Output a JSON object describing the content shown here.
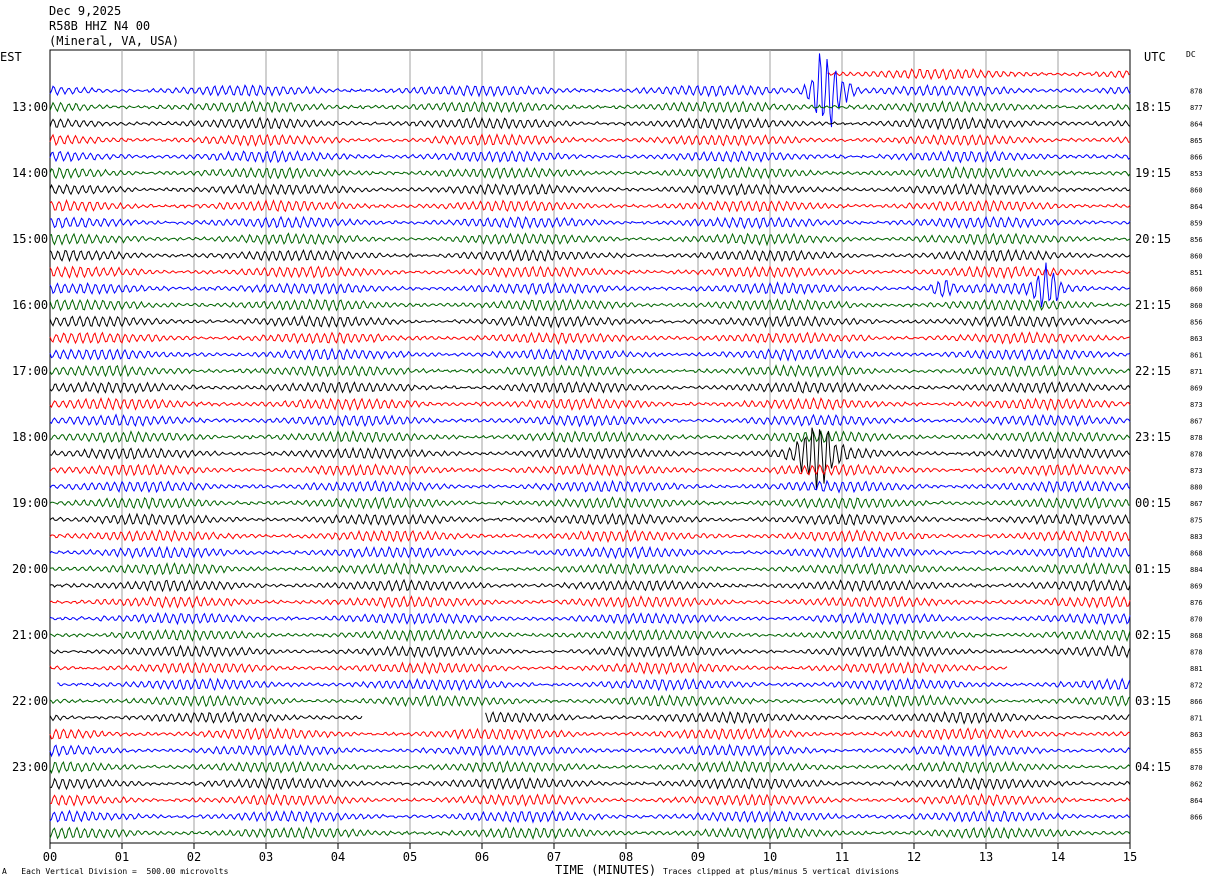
{
  "header": {
    "date": "Dec 9,2025",
    "station": "R58B HHZ N4 00",
    "location": "(Mineral, VA, USA)"
  },
  "labels": {
    "left_zone": "EST",
    "right_zone": "UTC",
    "dc": "DC",
    "x_title": "TIME (MINUTES)",
    "scale_note": "Each Vertical Division =  500.00 microvolts",
    "clip_note": "Traces clipped at plus/minus 5 vertical divisions",
    "corner_mark": "A"
  },
  "colors": {
    "trace_cycle": [
      "#ff0000",
      "#0000ff",
      "#006400",
      "#000000"
    ],
    "grid": "#a0a0a0",
    "axis": "#000000"
  },
  "chart_data": {
    "type": "line",
    "title": "Dec 9,2025 R58B HHZ N4 00 (Mineral, VA, USA)",
    "xlabel": "TIME (MINUTES)",
    "xlim": [
      0,
      15
    ],
    "x_ticks": [
      "00",
      "01",
      "02",
      "03",
      "04",
      "05",
      "06",
      "07",
      "08",
      "09",
      "10",
      "11",
      "12",
      "13",
      "14",
      "15"
    ],
    "row_minutes": 15,
    "first_row_start_est": "12:30",
    "left_hour_labels": [
      {
        "row": 2,
        "label": "13:00"
      },
      {
        "row": 6,
        "label": "14:00"
      },
      {
        "row": 10,
        "label": "15:00"
      },
      {
        "row": 14,
        "label": "16:00"
      },
      {
        "row": 18,
        "label": "17:00"
      },
      {
        "row": 22,
        "label": "18:00"
      },
      {
        "row": 26,
        "label": "19:00"
      },
      {
        "row": 30,
        "label": "20:00"
      },
      {
        "row": 34,
        "label": "21:00"
      },
      {
        "row": 38,
        "label": "22:00"
      },
      {
        "row": 42,
        "label": "23:00"
      }
    ],
    "right_hour_labels": [
      {
        "row": 2,
        "label": "18:15"
      },
      {
        "row": 6,
        "label": "19:15"
      },
      {
        "row": 10,
        "label": "20:15"
      },
      {
        "row": 14,
        "label": "21:15"
      },
      {
        "row": 18,
        "label": "22:15"
      },
      {
        "row": 22,
        "label": "23:15"
      },
      {
        "row": 26,
        "label": "00:15"
      },
      {
        "row": 30,
        "label": "01:15"
      },
      {
        "row": 34,
        "label": "02:15"
      },
      {
        "row": 38,
        "label": "03:15"
      },
      {
        "row": 42,
        "label": "04:15"
      }
    ],
    "dc_offsets": [
      "878",
      "877",
      "864",
      "865",
      "866",
      "853",
      "860",
      "864",
      "859",
      "856",
      "860",
      "851",
      "860",
      "860",
      "856",
      "863",
      "861",
      "871",
      "869",
      "873",
      "867",
      "878",
      "878",
      "873",
      "880",
      "867",
      "875",
      "883",
      "868",
      "884",
      "869",
      "876",
      "870",
      "868",
      "878",
      "881",
      "872",
      "866",
      "871",
      "863",
      "855",
      "870",
      "862",
      "864",
      "866"
    ],
    "traces": [
      {
        "row": 0,
        "color": "red",
        "start_min": 10.8,
        "end_min": 15,
        "amplitude": 4
      },
      {
        "row": 1,
        "color": "blue",
        "start_min": 0,
        "end_min": 15,
        "amplitude": 4,
        "events": [
          {
            "min": 10.8,
            "amp": 32,
            "width": 0.35
          }
        ]
      },
      {
        "row": 2,
        "color": "green",
        "start_min": 0,
        "end_min": 15,
        "amplitude": 4
      },
      {
        "row": 3,
        "color": "black",
        "start_min": 0,
        "end_min": 15,
        "amplitude": 4
      },
      {
        "row": 4,
        "color": "red",
        "start_min": 0,
        "end_min": 15,
        "amplitude": 4
      },
      {
        "row": 5,
        "color": "blue",
        "start_min": 0,
        "end_min": 15,
        "amplitude": 4
      },
      {
        "row": 6,
        "color": "green",
        "start_min": 0,
        "end_min": 15,
        "amplitude": 4
      },
      {
        "row": 7,
        "color": "black",
        "start_min": 0,
        "end_min": 15,
        "amplitude": 4
      },
      {
        "row": 8,
        "color": "red",
        "start_min": 0,
        "end_min": 15,
        "amplitude": 4
      },
      {
        "row": 9,
        "color": "blue",
        "start_min": 0,
        "end_min": 15,
        "amplitude": 4
      },
      {
        "row": 10,
        "color": "green",
        "start_min": 0,
        "end_min": 15,
        "amplitude": 4
      },
      {
        "row": 11,
        "color": "black",
        "start_min": 0,
        "end_min": 15,
        "amplitude": 4
      },
      {
        "row": 12,
        "color": "red",
        "start_min": 0,
        "end_min": 15,
        "amplitude": 4
      },
      {
        "row": 13,
        "color": "blue",
        "start_min": 0,
        "end_min": 15,
        "amplitude": 4,
        "events": [
          {
            "min": 12.4,
            "amp": 8,
            "width": 0.2
          },
          {
            "min": 13.85,
            "amp": 16,
            "width": 0.25
          }
        ]
      },
      {
        "row": 14,
        "color": "green",
        "start_min": 0,
        "end_min": 15,
        "amplitude": 4
      },
      {
        "row": 15,
        "color": "black",
        "start_min": 0,
        "end_min": 15,
        "amplitude": 4
      },
      {
        "row": 16,
        "color": "red",
        "start_min": 0,
        "end_min": 15,
        "amplitude": 4
      },
      {
        "row": 17,
        "color": "blue",
        "start_min": 0,
        "end_min": 15,
        "amplitude": 4
      },
      {
        "row": 18,
        "color": "green",
        "start_min": 0,
        "end_min": 15,
        "amplitude": 4
      },
      {
        "row": 19,
        "color": "black",
        "start_min": 0,
        "end_min": 15,
        "amplitude": 4
      },
      {
        "row": 20,
        "color": "red",
        "start_min": 0,
        "end_min": 15,
        "amplitude": 4
      },
      {
        "row": 21,
        "color": "blue",
        "start_min": 0,
        "end_min": 15,
        "amplitude": 4
      },
      {
        "row": 22,
        "color": "green",
        "start_min": 0,
        "end_min": 15,
        "amplitude": 4
      },
      {
        "row": 23,
        "color": "black",
        "start_min": 0,
        "end_min": 15,
        "amplitude": 4,
        "events": [
          {
            "min": 10.65,
            "amp": 22,
            "width": 0.4
          }
        ]
      },
      {
        "row": 24,
        "color": "red",
        "start_min": 0,
        "end_min": 15,
        "amplitude": 4
      },
      {
        "row": 25,
        "color": "blue",
        "start_min": 0,
        "end_min": 15,
        "amplitude": 4
      },
      {
        "row": 26,
        "color": "green",
        "start_min": 0,
        "end_min": 15,
        "amplitude": 4
      },
      {
        "row": 27,
        "color": "black",
        "start_min": 0,
        "end_min": 15,
        "amplitude": 4
      },
      {
        "row": 28,
        "color": "red",
        "start_min": 0,
        "end_min": 15,
        "amplitude": 4
      },
      {
        "row": 29,
        "color": "blue",
        "start_min": 0,
        "end_min": 15,
        "amplitude": 4
      },
      {
        "row": 30,
        "color": "green",
        "start_min": 0,
        "end_min": 15,
        "amplitude": 4
      },
      {
        "row": 31,
        "color": "black",
        "start_min": 0,
        "end_min": 15,
        "amplitude": 4
      },
      {
        "row": 32,
        "color": "red",
        "start_min": 0,
        "end_min": 15,
        "amplitude": 4
      },
      {
        "row": 33,
        "color": "blue",
        "start_min": 0,
        "end_min": 15,
        "amplitude": 4
      },
      {
        "row": 34,
        "color": "green",
        "start_min": 0,
        "end_min": 15,
        "amplitude": 4
      },
      {
        "row": 35,
        "color": "black",
        "start_min": 0,
        "end_min": 15,
        "amplitude": 4
      },
      {
        "row": 36,
        "color": "red",
        "start_min": 0,
        "end_min": 13.3,
        "amplitude": 4
      },
      {
        "row": 37,
        "color": "blue",
        "start_min": 0.1,
        "end_min": 15,
        "amplitude": 4
      },
      {
        "row": 38,
        "color": "green",
        "start_min": 0,
        "end_min": 15,
        "amplitude": 4
      },
      {
        "row": 39,
        "color": "black",
        "start_min": 0,
        "end_min": 4.35,
        "amplitude": 4
      },
      {
        "row": 39,
        "color": "black",
        "start_min": 6.05,
        "end_min": 15,
        "amplitude": 4
      },
      {
        "row": 40,
        "color": "red",
        "start_min": 0,
        "end_min": 15,
        "amplitude": 4
      },
      {
        "row": 41,
        "color": "blue",
        "start_min": 0,
        "end_min": 15,
        "amplitude": 4
      },
      {
        "row": 42,
        "color": "green",
        "start_min": 0,
        "end_min": 15,
        "amplitude": 4
      },
      {
        "row": 43,
        "color": "black",
        "start_min": 0,
        "end_min": 15,
        "amplitude": 4
      },
      {
        "row": 44,
        "color": "red",
        "start_min": 0,
        "end_min": 15,
        "amplitude": 4
      },
      {
        "row": 45,
        "color": "blue",
        "start_min": 0,
        "end_min": 15,
        "amplitude": 4
      },
      {
        "row": 46,
        "color": "green",
        "start_min": 0,
        "end_min": 15,
        "amplitude": 4
      }
    ]
  }
}
